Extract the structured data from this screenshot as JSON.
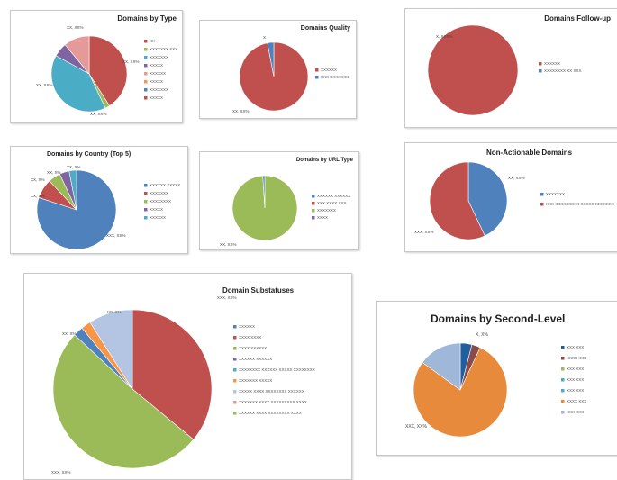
{
  "chart_data": [
    {
      "type": "pie",
      "title": "Domains by Type",
      "slices": [
        {
          "value": 41,
          "color": "#c0504d",
          "label": "XX, XX%"
        },
        {
          "value": 2,
          "color": "#9bbb59",
          "label": "XX, XX%"
        },
        {
          "value": 40,
          "color": "#4bacc6",
          "label": "XX, XX%"
        },
        {
          "value": 6,
          "color": "#8064a2",
          "label": ""
        },
        {
          "value": 11,
          "color": "#e59a9a",
          "label": "XX, XX%"
        }
      ],
      "legend": [
        "XX",
        "XXXXXXX XXX",
        "XXXXXXX",
        "XXXXX",
        "XXXXXX",
        "XXXXX",
        "XXXXXXX",
        "XXXXX"
      ],
      "legend_colors": [
        "#c0504d",
        "#9bbb59",
        "#4bacc6",
        "#8064a2",
        "#e59a9a",
        "#f79646",
        "#4f81bd",
        "#c0504d"
      ]
    },
    {
      "type": "pie",
      "title": "Domains Quality",
      "slices": [
        {
          "value": 97,
          "color": "#c0504d",
          "label": "XX, XX%"
        },
        {
          "value": 3,
          "color": "#4f81bd",
          "label": "X"
        }
      ],
      "legend": [
        "XXXXXX",
        "XXX XXXXXXX"
      ],
      "legend_colors": [
        "#c0504d",
        "#4f81bd"
      ]
    },
    {
      "type": "pie",
      "title": "Domains Follow-up",
      "slices": [
        {
          "value": 100,
          "color": "#c0504d",
          "label": "X, XXX%"
        }
      ],
      "legend": [
        "XXXXXX",
        "XXXXXXXX XX XXX"
      ],
      "legend_colors": [
        "#c0504d",
        "#4f81bd"
      ]
    },
    {
      "type": "pie",
      "title": "Domains by Country (Top 5)",
      "slices": [
        {
          "value": 80,
          "color": "#4f81bd",
          "label": "XXX, XX%"
        },
        {
          "value": 8,
          "color": "#c0504d",
          "label": "XX, X%"
        },
        {
          "value": 5,
          "color": "#9bbb59",
          "label": "XX, X%"
        },
        {
          "value": 4,
          "color": "#8064a2",
          "label": "XX, X%"
        },
        {
          "value": 3,
          "color": "#4bacc6",
          "label": "XX, X%"
        }
      ],
      "legend": [
        "XXXXXX XXXXX",
        "XXXXXXX",
        "XXXXXXXX",
        "XXXXX",
        "XXXXXX"
      ],
      "legend_colors": [
        "#4f81bd",
        "#c0504d",
        "#9bbb59",
        "#8064a2",
        "#4bacc6"
      ]
    },
    {
      "type": "pie",
      "title": "Domains by URL Type",
      "slices": [
        {
          "value": 99,
          "color": "#9bbb59",
          "label": "XX, XX%"
        },
        {
          "value": 1,
          "color": "#4f81bd",
          "label": ""
        }
      ],
      "legend": [
        "XXXXXX XXXXXX",
        "XXX XXXX XXX",
        "XXXXXXX",
        "XXXX"
      ],
      "legend_colors": [
        "#4f81bd",
        "#c0504d",
        "#9bbb59",
        "#8064a2"
      ]
    },
    {
      "type": "pie",
      "title": "Non-Actionable Domains",
      "slices": [
        {
          "value": 43,
          "color": "#4f81bd",
          "label": "XX, XX%"
        },
        {
          "value": 57,
          "color": "#c0504d",
          "label": "XXX, XX%"
        }
      ],
      "legend": [
        "XXXXXXX",
        "XXX XXXXXXXXX XXXXX XXXXXXX"
      ],
      "legend_colors": [
        "#4f81bd",
        "#c0504d"
      ]
    },
    {
      "type": "pie",
      "title": "Domain Substatuses",
      "slices": [
        {
          "value": 36,
          "color": "#c0504d",
          "label": "XXX, XX%"
        },
        {
          "value": 51,
          "color": "#9bbb59",
          "label": "XXX, XX%"
        },
        {
          "value": 2,
          "color": "#4f81bd",
          "label": ""
        },
        {
          "value": 2,
          "color": "#f79646",
          "label": "XX, X%"
        },
        {
          "value": 9,
          "color": "#b3c5e2",
          "label": "XX, X%"
        }
      ],
      "legend": [
        "XXXXXX",
        "XXXX XXXX",
        "XXXX XXXXXX",
        "XXXXXX XXXXXX",
        "XXXXXXXX XXXXXX XXXXX XXXXXXXX",
        "XXXXXXX XXXXX",
        "XXXXX XXXX XXXXXXXX XXXXXX",
        "XXXXXXX XXXX XXXXXXXXX XXXX",
        "XXXXXX XXXX XXXXXXXX XXXX"
      ],
      "legend_colors": [
        "#4f81bd",
        "#c0504d",
        "#9bbb59",
        "#8064a2",
        "#4bacc6",
        "#f79646",
        "#b3c5e2",
        "#e59a9a",
        "#9bbb59"
      ]
    },
    {
      "type": "pie",
      "title": "Domains by Second-Level",
      "slices": [
        {
          "value": 4,
          "color": "#1f5f9e",
          "label": "X, X%"
        },
        {
          "value": 3,
          "color": "#8b4b4b",
          "label": ""
        },
        {
          "value": 78,
          "color": "#e88a3c",
          "label": "XXX, XX%"
        },
        {
          "value": 15,
          "color": "#9fb7d9",
          "label": ""
        }
      ],
      "legend": [
        "XXX XXX",
        "XXXX XXX",
        "XXX XXX",
        "XXX XXX",
        "XXX XXX",
        "XXXX XXX",
        "XXX XXX"
      ],
      "legend_colors": [
        "#1f5f9e",
        "#8b4b4b",
        "#9bbb59",
        "#4bacc6",
        "#4bacc6",
        "#e88a3c",
        "#9fb7d9"
      ]
    }
  ]
}
